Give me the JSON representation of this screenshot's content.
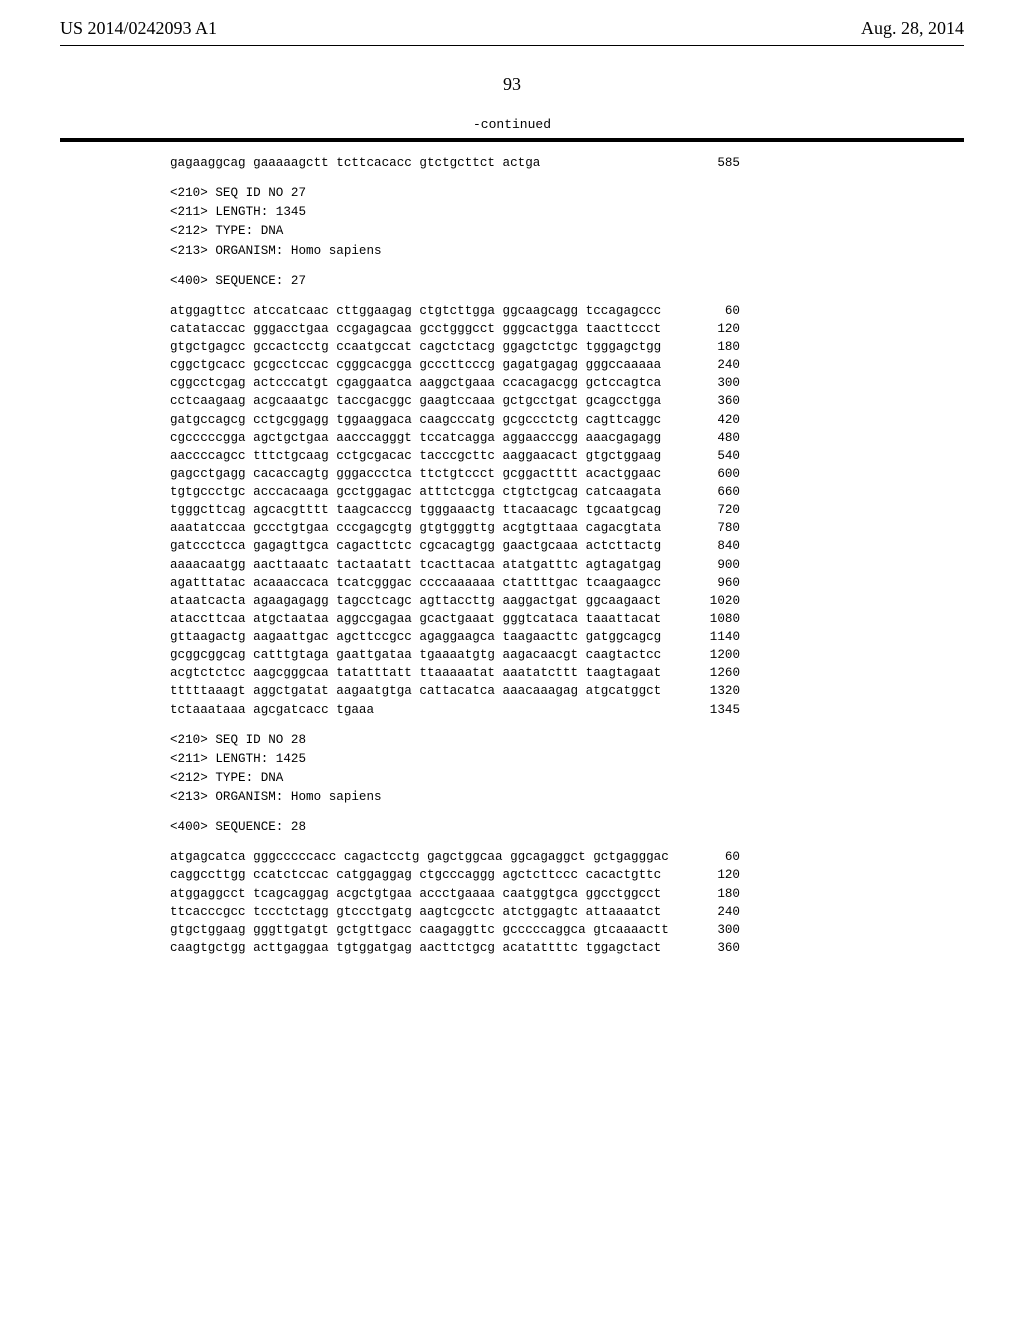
{
  "header": {
    "left": "US 2014/0242093 A1",
    "right": "Aug. 28, 2014"
  },
  "page_number": "93",
  "continued_label": "-continued",
  "blocks": [
    {
      "type": "seq_lines",
      "lines": [
        {
          "text": "gagaaggcag gaaaaagctt tcttcacacc gtctgcttct actga",
          "num": "585"
        }
      ]
    },
    {
      "type": "meta",
      "lines": [
        "<210> SEQ ID NO 27",
        "<211> LENGTH: 1345",
        "<212> TYPE: DNA",
        "<213> ORGANISM: Homo sapiens"
      ]
    },
    {
      "type": "meta",
      "lines": [
        "<400> SEQUENCE: 27"
      ]
    },
    {
      "type": "seq_lines",
      "lines": [
        {
          "text": "atggagttcc atccatcaac cttggaagag ctgtcttgga ggcaagcagg tccagagccc",
          "num": "60"
        },
        {
          "text": "catataccac gggacctgaa ccgagagcaa gcctgggcct gggcactgga taacttccct",
          "num": "120"
        },
        {
          "text": "gtgctgagcc gccactcctg ccaatgccat cagctctacg ggagctctgc tgggagctgg",
          "num": "180"
        },
        {
          "text": "cggctgcacc gcgcctccac cgggcacgga gcccttcccg gagatgagag gggccaaaaa",
          "num": "240"
        },
        {
          "text": "cggcctcgag actcccatgt cgaggaatca aaggctgaaa ccacagacgg gctccagtca",
          "num": "300"
        },
        {
          "text": "cctcaagaag acgcaaatgc taccgacggc gaagtccaaa gctgcctgat gcagcctgga",
          "num": "360"
        },
        {
          "text": "gatgccagcg cctgcggagg tggaaggaca caagcccatg gcgccctctg cagttcaggc",
          "num": "420"
        },
        {
          "text": "cgcccccgga agctgctgaa aacccagggt tccatcagga aggaacccgg aaacgagagg",
          "num": "480"
        },
        {
          "text": "aaccccagcc tttctgcaag cctgcgacac tacccgcttc aaggaacact gtgctggaag",
          "num": "540"
        },
        {
          "text": "gagcctgagg cacaccagtg gggaccctca ttctgtccct gcggactttt acactggaac",
          "num": "600"
        },
        {
          "text": "tgtgccctgc acccacaaga gcctggagac atttctcgga ctgtctgcag catcaagata",
          "num": "660"
        },
        {
          "text": "tgggcttcag agcacgtttt taagcacccg tgggaaactg ttacaacagc tgcaatgcag",
          "num": "720"
        },
        {
          "text": "aaatatccaa gccctgtgaa cccgagcgtg gtgtgggttg acgtgttaaa cagacgtata",
          "num": "780"
        },
        {
          "text": "gatccctcca gagagttgca cagacttctc cgcacagtgg gaactgcaaa actcttactg",
          "num": "840"
        },
        {
          "text": "aaaacaatgg aacttaaatc tactaatatt tcacttacaa atatgatttc agtagatgag",
          "num": "900"
        },
        {
          "text": "agatttatac acaaaccaca tcatcgggac ccccaaaaaa ctattttgac tcaagaagcc",
          "num": "960"
        },
        {
          "text": "ataatcacta agaagagagg tagcctcagc agttaccttg aaggactgat ggcaagaact",
          "num": "1020"
        },
        {
          "text": "ataccttcaa atgctaataa aggccgagaa gcactgaaat gggtcataca taaattacat",
          "num": "1080"
        },
        {
          "text": "gttaagactg aagaattgac agcttccgcc agaggaagca taagaacttc gatggcagcg",
          "num": "1140"
        },
        {
          "text": "gcggcggcag catttgtaga gaattgataa tgaaaatgtg aagacaacgt caagtactcc",
          "num": "1200"
        },
        {
          "text": "acgtctctcc aagcgggcaa tatatttatt ttaaaaatat aaatatcttt taagtagaat",
          "num": "1260"
        },
        {
          "text": "tttttaaagt aggctgatat aagaatgtga cattacatca aaacaaagag atgcatggct",
          "num": "1320"
        },
        {
          "text": "tctaaataaa agcgatcacc tgaaa",
          "num": "1345"
        }
      ]
    },
    {
      "type": "meta",
      "lines": [
        "<210> SEQ ID NO 28",
        "<211> LENGTH: 1425",
        "<212> TYPE: DNA",
        "<213> ORGANISM: Homo sapiens"
      ]
    },
    {
      "type": "meta",
      "lines": [
        "<400> SEQUENCE: 28"
      ]
    },
    {
      "type": "seq_lines",
      "lines": [
        {
          "text": "atgagcatca gggcccccacc cagactcctg gagctggcaa ggcagaggct gctgagggac",
          "num": "60"
        },
        {
          "text": "caggccttgg ccatctccac catggaggag ctgcccaggg agctcttccc cacactgttc",
          "num": "120"
        },
        {
          "text": "atggaggcct tcagcaggag acgctgtgaa accctgaaaa caatggtgca ggcctggcct",
          "num": "180"
        },
        {
          "text": "ttcacccgcc tccctctagg gtccctgatg aagtcgcctc atctggagtc attaaaatct",
          "num": "240"
        },
        {
          "text": "gtgctggaag gggttgatgt gctgttgacc caagaggttc gcccccaggca gtcaaaactt",
          "num": "300"
        },
        {
          "text": "caagtgctgg acttgaggaa tgtggatgag aacttctgcg acatattttc tggagctact",
          "num": "360"
        }
      ]
    }
  ]
}
